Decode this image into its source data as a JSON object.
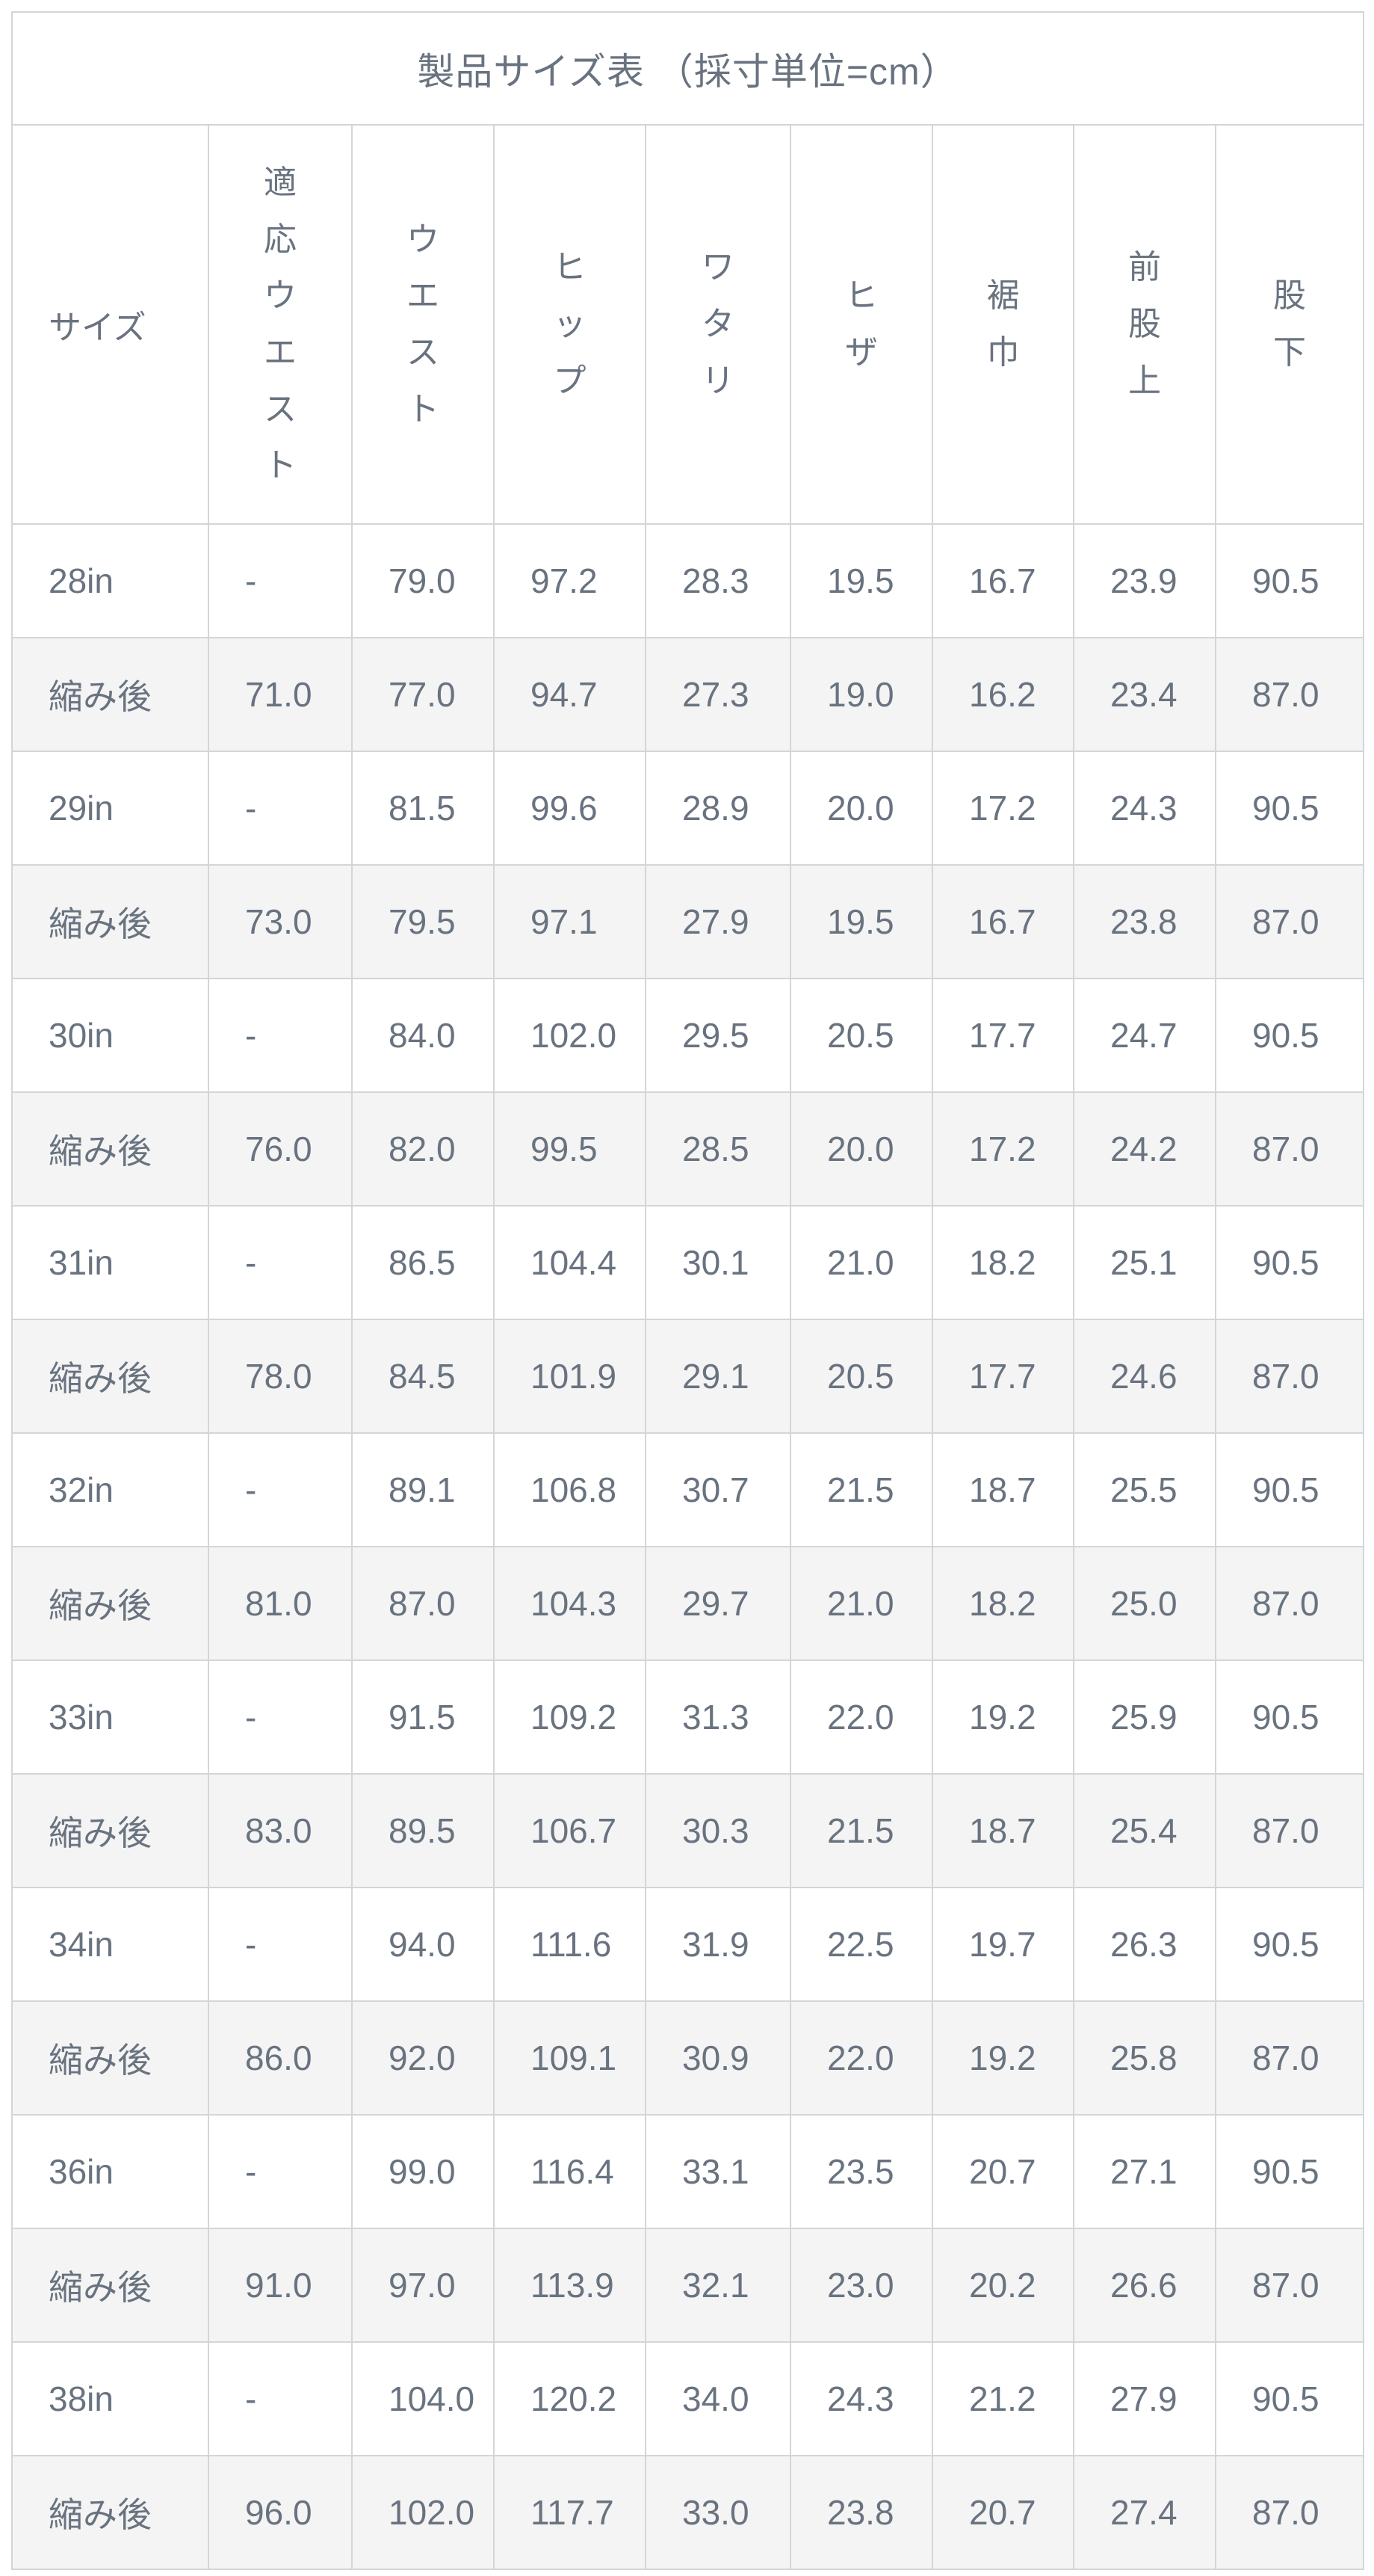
{
  "table": {
    "title": "製品サイズ表 （採寸単位=cm）",
    "columns": [
      {
        "key": "size",
        "label": "サイズ",
        "vertical": false
      },
      {
        "key": "fit-waist",
        "label": "適応ウエスト",
        "vertical": true
      },
      {
        "key": "waist",
        "label": "ウエスト",
        "vertical": true
      },
      {
        "key": "hip",
        "label": "ヒップ",
        "vertical": true
      },
      {
        "key": "watari",
        "label": "ワタリ",
        "vertical": true
      },
      {
        "key": "knee",
        "label": "ヒザ",
        "vertical": true
      },
      {
        "key": "hem-width",
        "label": "裾巾",
        "vertical": true
      },
      {
        "key": "front-rise",
        "label": "前股上",
        "vertical": true
      },
      {
        "key": "inseam",
        "label": "股下",
        "vertical": true
      }
    ],
    "rows": [
      {
        "cells": [
          "28in",
          "-",
          "79.0",
          "97.2",
          "28.3",
          "19.5",
          "16.7",
          "23.9",
          "90.5"
        ],
        "shaded": false
      },
      {
        "cells": [
          "縮み後",
          "71.0",
          "77.0",
          "94.7",
          "27.3",
          "19.0",
          "16.2",
          "23.4",
          "87.0"
        ],
        "shaded": true
      },
      {
        "cells": [
          "29in",
          "-",
          "81.5",
          "99.6",
          "28.9",
          "20.0",
          "17.2",
          "24.3",
          "90.5"
        ],
        "shaded": false
      },
      {
        "cells": [
          "縮み後",
          "73.0",
          "79.5",
          "97.1",
          "27.9",
          "19.5",
          "16.7",
          "23.8",
          "87.0"
        ],
        "shaded": true
      },
      {
        "cells": [
          "30in",
          "-",
          "84.0",
          "102.0",
          "29.5",
          "20.5",
          "17.7",
          "24.7",
          "90.5"
        ],
        "shaded": false
      },
      {
        "cells": [
          "縮み後",
          "76.0",
          "82.0",
          "99.5",
          "28.5",
          "20.0",
          "17.2",
          "24.2",
          "87.0"
        ],
        "shaded": true
      },
      {
        "cells": [
          "31in",
          "-",
          "86.5",
          "104.4",
          "30.1",
          "21.0",
          "18.2",
          "25.1",
          "90.5"
        ],
        "shaded": false
      },
      {
        "cells": [
          "縮み後",
          "78.0",
          "84.5",
          "101.9",
          "29.1",
          "20.5",
          "17.7",
          "24.6",
          "87.0"
        ],
        "shaded": true
      },
      {
        "cells": [
          "32in",
          "-",
          "89.1",
          "106.8",
          "30.7",
          "21.5",
          "18.7",
          "25.5",
          "90.5"
        ],
        "shaded": false
      },
      {
        "cells": [
          "縮み後",
          "81.0",
          "87.0",
          "104.3",
          "29.7",
          "21.0",
          "18.2",
          "25.0",
          "87.0"
        ],
        "shaded": true
      },
      {
        "cells": [
          "33in",
          "-",
          "91.5",
          "109.2",
          "31.3",
          "22.0",
          "19.2",
          "25.9",
          "90.5"
        ],
        "shaded": false
      },
      {
        "cells": [
          "縮み後",
          "83.0",
          "89.5",
          "106.7",
          "30.3",
          "21.5",
          "18.7",
          "25.4",
          "87.0"
        ],
        "shaded": true
      },
      {
        "cells": [
          "34in",
          "-",
          "94.0",
          "111.6",
          "31.9",
          "22.5",
          "19.7",
          "26.3",
          "90.5"
        ],
        "shaded": false
      },
      {
        "cells": [
          "縮み後",
          "86.0",
          "92.0",
          "109.1",
          "30.9",
          "22.0",
          "19.2",
          "25.8",
          "87.0"
        ],
        "shaded": true
      },
      {
        "cells": [
          "36in",
          "-",
          "99.0",
          "116.4",
          "33.1",
          "23.5",
          "20.7",
          "27.1",
          "90.5"
        ],
        "shaded": false
      },
      {
        "cells": [
          "縮み後",
          "91.0",
          "97.0",
          "113.9",
          "32.1",
          "23.0",
          "20.2",
          "26.6",
          "87.0"
        ],
        "shaded": true
      },
      {
        "cells": [
          "38in",
          "-",
          "104.0",
          "120.2",
          "34.0",
          "24.3",
          "21.2",
          "27.9",
          "90.5"
        ],
        "shaded": false
      },
      {
        "cells": [
          "縮み後",
          "96.0",
          "102.0",
          "117.7",
          "33.0",
          "23.8",
          "20.7",
          "27.4",
          "87.0"
        ],
        "shaded": true
      }
    ]
  },
  "colors": {
    "text": "#697380",
    "border_vertical": "#d3d5d7",
    "border_horizontal": "#c9cccf",
    "shaded_row_bg": "#f4f4f4",
    "background": "#ffffff"
  }
}
